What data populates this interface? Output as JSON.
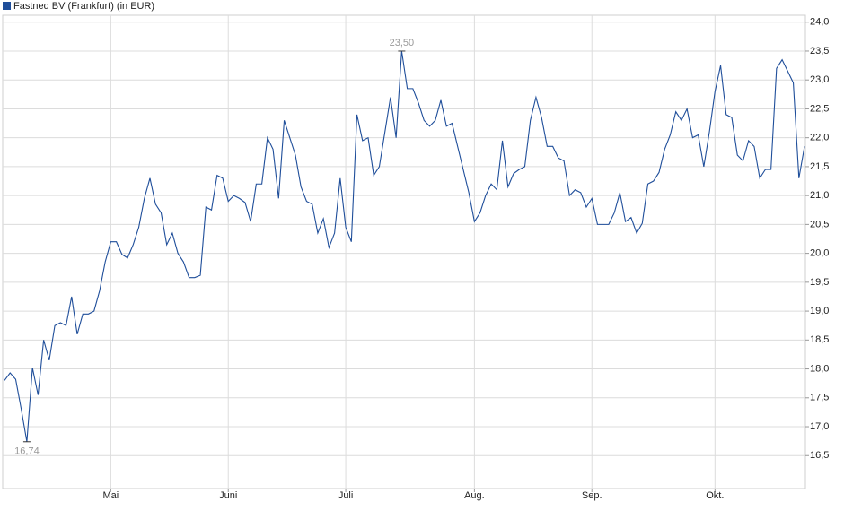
{
  "chart_data": {
    "type": "line",
    "categories": [
      null,
      null,
      null,
      null,
      null,
      null,
      null,
      null,
      null,
      null,
      null,
      null,
      null,
      null,
      null,
      null,
      null,
      null,
      null,
      "Mai",
      null,
      null,
      null,
      null,
      null,
      null,
      null,
      null,
      null,
      null,
      null,
      null,
      null,
      null,
      null,
      null,
      null,
      null,
      null,
      null,
      "Juni",
      null,
      null,
      null,
      null,
      null,
      null,
      null,
      null,
      null,
      null,
      null,
      null,
      null,
      null,
      null,
      null,
      null,
      null,
      null,
      null,
      "Juli",
      null,
      null,
      null,
      null,
      null,
      null,
      null,
      null,
      null,
      null,
      null,
      null,
      null,
      null,
      null,
      null,
      null,
      null,
      null,
      null,
      null,
      null,
      "Aug.",
      null,
      null,
      null,
      null,
      null,
      null,
      null,
      null,
      null,
      null,
      null,
      null,
      null,
      null,
      null,
      null,
      null,
      null,
      null,
      null,
      "Sep.",
      null,
      null,
      null,
      null,
      null,
      null,
      null,
      null,
      null,
      null,
      null,
      null,
      null,
      null,
      null,
      null,
      null,
      null,
      null,
      null,
      null,
      "Okt.",
      null,
      null,
      null,
      null,
      null,
      null,
      null,
      null,
      null,
      null,
      null,
      null,
      null,
      null,
      null,
      null
    ],
    "series": [
      {
        "name": "Fastned BV (Frankfurt) (in EUR)",
        "color": "#1f4e9a",
        "values": [
          17.8,
          17.93,
          17.82,
          17.3,
          16.74,
          18.02,
          17.55,
          18.5,
          18.15,
          18.75,
          18.8,
          18.75,
          19.25,
          18.6,
          18.95,
          18.95,
          19.0,
          19.35,
          19.85,
          20.2,
          20.2,
          19.98,
          19.92,
          20.15,
          20.45,
          20.95,
          21.3,
          20.85,
          20.7,
          20.15,
          20.35,
          20.0,
          19.85,
          19.58,
          19.58,
          19.62,
          20.8,
          20.75,
          21.35,
          21.3,
          20.9,
          21.0,
          20.95,
          20.88,
          20.55,
          21.2,
          21.2,
          22.0,
          21.8,
          20.95,
          22.3,
          22.0,
          21.7,
          21.15,
          20.9,
          20.85,
          20.35,
          20.6,
          20.1,
          20.35,
          21.3,
          20.45,
          20.2,
          22.4,
          21.95,
          22.0,
          21.35,
          21.5,
          22.1,
          22.7,
          22.0,
          23.5,
          22.85,
          22.85,
          22.6,
          22.3,
          22.2,
          22.3,
          22.65,
          22.2,
          22.25,
          21.85,
          21.45,
          21.05,
          20.55,
          20.7,
          21.0,
          21.2,
          21.1,
          21.95,
          21.15,
          21.38,
          21.45,
          21.5,
          22.3,
          22.7,
          22.35,
          21.85,
          21.85,
          21.65,
          21.6,
          21.0,
          21.1,
          21.05,
          20.8,
          20.95,
          20.5,
          20.5,
          20.5,
          20.7,
          21.05,
          20.55,
          20.62,
          20.35,
          20.52,
          21.2,
          21.25,
          21.4,
          21.8,
          22.05,
          22.45,
          22.3,
          22.5,
          22.0,
          22.05,
          21.5,
          22.1,
          22.8,
          23.25,
          22.4,
          22.35,
          21.7,
          21.6,
          21.95,
          21.85,
          21.3,
          21.45,
          21.45,
          23.2,
          23.35,
          23.15,
          22.95,
          21.3,
          21.85
        ],
        "value_labels": [
          null,
          null,
          null,
          null,
          "16,74",
          null,
          null,
          null,
          null,
          null,
          null,
          null,
          null,
          null,
          null,
          null,
          null,
          null,
          null,
          null,
          null,
          null,
          null,
          null,
          null,
          null,
          null,
          null,
          null,
          null,
          null,
          null,
          null,
          null,
          null,
          null,
          null,
          null,
          null,
          null,
          null,
          null,
          null,
          null,
          null,
          null,
          null,
          null,
          null,
          null,
          null,
          null,
          null,
          null,
          null,
          null,
          null,
          null,
          null,
          null,
          null,
          null,
          null,
          null,
          null,
          null,
          null,
          null,
          null,
          null,
          null,
          "23,50",
          null,
          null,
          null,
          null,
          null,
          null,
          null,
          null,
          null,
          null,
          null,
          null,
          null,
          null,
          null,
          null,
          null,
          null,
          null,
          null,
          null,
          null,
          null,
          null,
          null,
          null,
          null,
          null,
          null,
          null,
          null,
          null,
          null,
          null,
          null,
          null,
          null,
          null,
          null,
          null,
          null,
          null,
          null,
          null,
          null,
          null,
          null,
          null,
          null,
          null,
          null,
          null,
          null,
          null,
          null,
          null,
          null,
          null,
          null,
          null,
          null,
          null,
          null,
          null,
          null,
          null,
          null,
          null,
          null,
          null
        ]
      }
    ],
    "ylim": [
      15.93,
      24.12
    ],
    "yticks": [
      {
        "value": 16.5,
        "label": "16,5"
      },
      {
        "value": 17,
        "label": "17,0"
      },
      {
        "value": 17.5,
        "label": "17,5"
      },
      {
        "value": 18,
        "label": "18,0"
      },
      {
        "value": 18.5,
        "label": "18,5"
      },
      {
        "value": 19,
        "label": "19,0"
      },
      {
        "value": 19.5,
        "label": "19,5"
      },
      {
        "value": 20,
        "label": "20,0"
      },
      {
        "value": 20.5,
        "label": "20,5"
      },
      {
        "value": 21,
        "label": "21,0"
      },
      {
        "value": 21.5,
        "label": "21,5"
      },
      {
        "value": 22,
        "label": "22,0"
      },
      {
        "value": 22.5,
        "label": "22,5"
      },
      {
        "value": 23,
        "label": "23,0"
      },
      {
        "value": 23.5,
        "label": "23,5"
      },
      {
        "value": 24,
        "label": "24,0"
      }
    ],
    "grid": true
  }
}
